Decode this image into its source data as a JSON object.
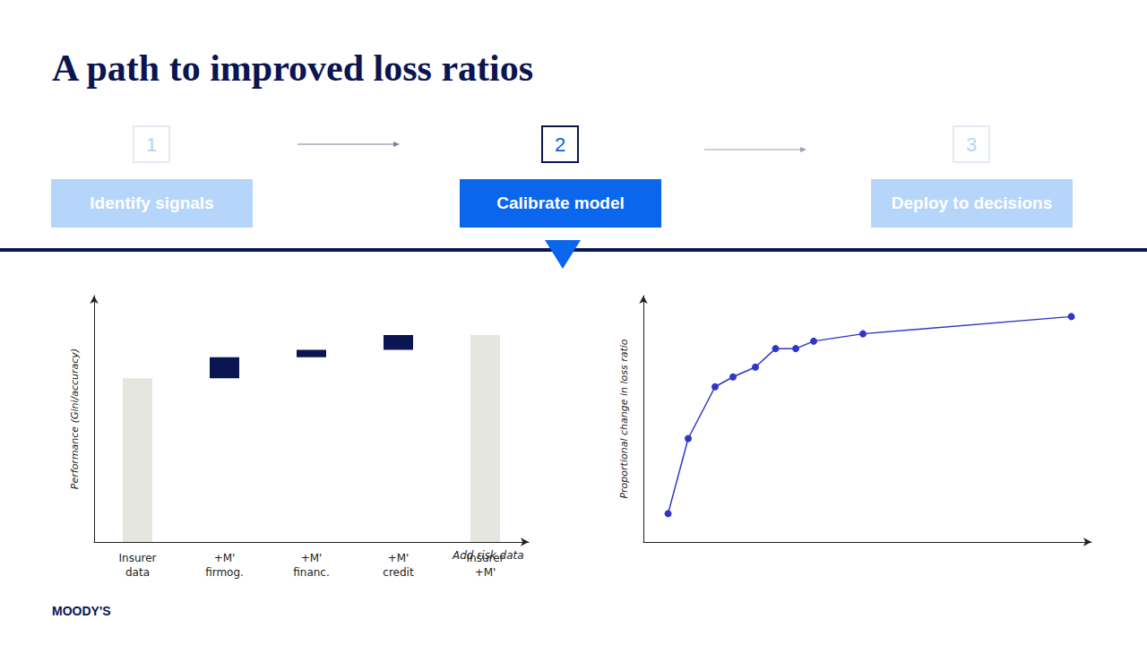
{
  "title": "A path to improved loss ratios",
  "steps": [
    {
      "number": 1,
      "label": "Identify signals"
    },
    {
      "number": 2,
      "label": "Calibrate model",
      "active": true
    },
    {
      "number": 3,
      "label": "Deploy to decisions"
    }
  ],
  "logo": "MOODY'S",
  "chart_data": [
    {
      "type": "waterfall",
      "categories": [
        "Insurer data",
        "+M' firmog.",
        "+M' financ.",
        "+M' credit",
        "Insurer +M'"
      ],
      "values": [
        66.5,
        8.5,
        3,
        6,
        84
      ],
      "colors": [
        "#e6e6e1",
        "#0a1551",
        "#0a1551",
        "#0a1551",
        "#e6e6e1"
      ],
      "ylabel": "Performance (Gini/accuracy)",
      "xlabel": "Add risk data",
      "ylim": [
        0,
        100
      ],
      "tick_labels": false
    },
    {
      "type": "line",
      "x": [
        5.5,
        10,
        16,
        20,
        25,
        29.5,
        34,
        38,
        49,
        95.5
      ],
      "values": [
        11.5,
        42,
        63,
        67,
        71,
        78.5,
        78.5,
        81.5,
        84.5,
        91.5
      ],
      "color": "#2f35c8",
      "marker": "circle",
      "ylabel": "Proportional change in loss ratio",
      "xlim": [
        0,
        100
      ],
      "ylim": [
        0,
        100
      ],
      "tick_labels": false
    }
  ]
}
